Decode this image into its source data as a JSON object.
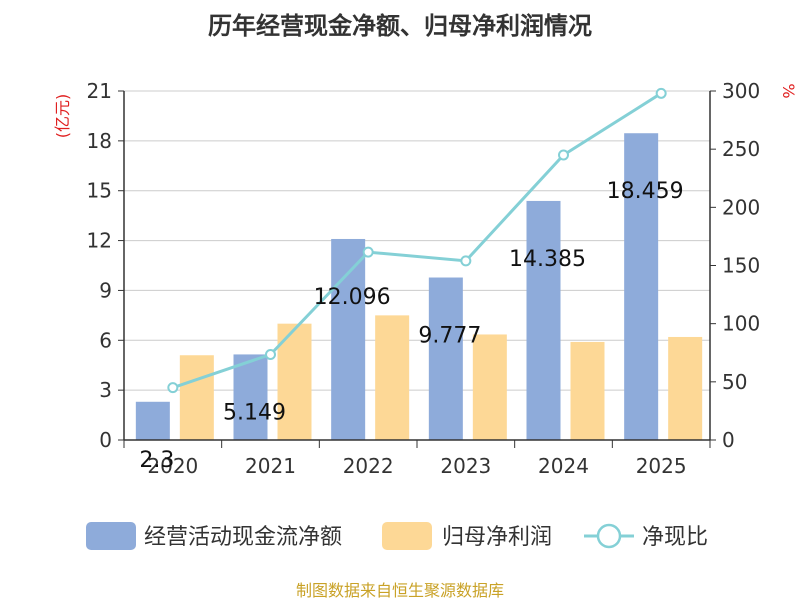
{
  "colors": {
    "ocf": "#8eabda",
    "profit": "#fdd896",
    "ratio": "#84d0d6",
    "axis": "#333333",
    "grid": "#cccccc",
    "unit": "#e02020",
    "source": "#c9a227"
  },
  "chart_data": {
    "type": "bar",
    "title": "历年经营现金净额、归母净利润情况",
    "categories": [
      "2020",
      "2021",
      "2022",
      "2023",
      "2024",
      "2025"
    ],
    "left_axis": {
      "unit": "(亿元)",
      "ylim": [
        0,
        21
      ],
      "ticks": [
        "0",
        "3",
        "6",
        "9",
        "12",
        "15",
        "18",
        "21"
      ]
    },
    "right_axis": {
      "unit": "%",
      "ylim": [
        0,
        300
      ],
      "ticks": [
        "0",
        "50",
        "100",
        "150",
        "200",
        "250",
        "300"
      ]
    },
    "grid": true,
    "series": [
      {
        "name": "经营活动现金流净额",
        "kind": "bar",
        "axis": "left",
        "values": [
          2.3,
          5.149,
          12.096,
          9.777,
          14.385,
          18.459
        ],
        "labels": [
          "2.3",
          "5.149",
          "12.096",
          "9.777",
          "14.385",
          "18.459"
        ]
      },
      {
        "name": "归母净利润",
        "kind": "bar",
        "axis": "left",
        "values": [
          5.1,
          7.0,
          7.5,
          6.35,
          5.9,
          6.2
        ]
      },
      {
        "name": "净现比",
        "kind": "line",
        "axis": "right",
        "values": [
          45,
          73.5,
          161.5,
          154,
          245,
          298
        ]
      }
    ],
    "legend_position": "bottom",
    "source": "制图数据来自恒生聚源数据库"
  }
}
